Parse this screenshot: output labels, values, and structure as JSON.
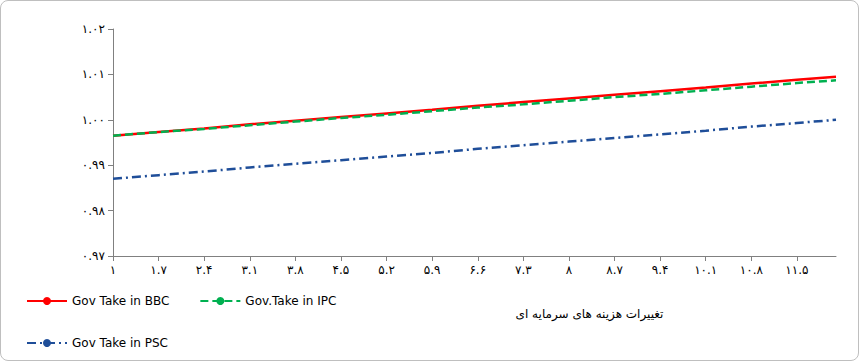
{
  "chart_data": {
    "type": "line",
    "xlabel": "تغییرات هزینه های سرمایه ای",
    "xlim": [
      1,
      12.1
    ],
    "xticks": [
      {
        "value": 1,
        "label": "۱"
      },
      {
        "value": 1.7,
        "label": "۱.۷"
      },
      {
        "value": 2.4,
        "label": "۲.۴"
      },
      {
        "value": 3.1,
        "label": "۳.۱"
      },
      {
        "value": 3.8,
        "label": "۳.۸"
      },
      {
        "value": 4.5,
        "label": "۴.۵"
      },
      {
        "value": 5.2,
        "label": "۵.۲"
      },
      {
        "value": 5.9,
        "label": "۵.۹"
      },
      {
        "value": 6.6,
        "label": "۶.۶"
      },
      {
        "value": 7.3,
        "label": "۷.۳"
      },
      {
        "value": 8,
        "label": "۸"
      },
      {
        "value": 8.7,
        "label": "۸.۷"
      },
      {
        "value": 9.4,
        "label": "۹.۴"
      },
      {
        "value": 10.1,
        "label": "۱۰.۱"
      },
      {
        "value": 10.8,
        "label": "۱۰.۸"
      },
      {
        "value": 11.5,
        "label": "۱۱.۵"
      }
    ],
    "ylim": [
      0.97,
      1.02
    ],
    "yticks": [
      {
        "value": 0.97,
        "label": "۰.۹۷"
      },
      {
        "value": 0.98,
        "label": "۰.۹۸"
      },
      {
        "value": 0.99,
        "label": "۰.۹۹"
      },
      {
        "value": 1.0,
        "label": "۱.۰۰"
      },
      {
        "value": 1.01,
        "label": "۱.۰۱"
      },
      {
        "value": 1.02,
        "label": "۱.۰۲"
      }
    ],
    "grid": false,
    "legend": "bottom-left",
    "x": [
      1,
      1.7,
      2.4,
      3.1,
      3.8,
      4.5,
      5.2,
      5.9,
      6.6,
      7.3,
      8,
      8.7,
      9.4,
      10.1,
      10.8,
      11.5,
      12.1
    ],
    "series": [
      {
        "name": "Gov Take in BBC",
        "color": "#ff0000",
        "line_style": "solid",
        "values": [
          0.9965,
          0.9973,
          0.9981,
          0.999,
          0.9998,
          1.0006,
          1.0014,
          1.0022,
          1.0031,
          1.0039,
          1.0047,
          1.0055,
          1.0063,
          1.0071,
          1.008,
          1.0088,
          1.0095
        ]
      },
      {
        "name": "Gov.Take in IPC",
        "color": "#00b050",
        "line_style": "dashed",
        "values": [
          0.9965,
          0.9973,
          0.998,
          0.9988,
          0.9996,
          1.0004,
          1.0011,
          1.0019,
          1.0027,
          1.0034,
          1.0042,
          1.005,
          1.0057,
          1.0065,
          1.0073,
          1.0081,
          1.0087
        ]
      },
      {
        "name": "Gov Take in PSC",
        "color": "#1f4e99",
        "line_style": "dashdot",
        "values": [
          0.987,
          0.9878,
          0.9886,
          0.9895,
          0.9903,
          0.9911,
          0.9919,
          0.9927,
          0.9936,
          0.9944,
          0.9952,
          0.996,
          0.9968,
          0.9976,
          0.9985,
          0.9993,
          1.0
        ]
      }
    ]
  }
}
